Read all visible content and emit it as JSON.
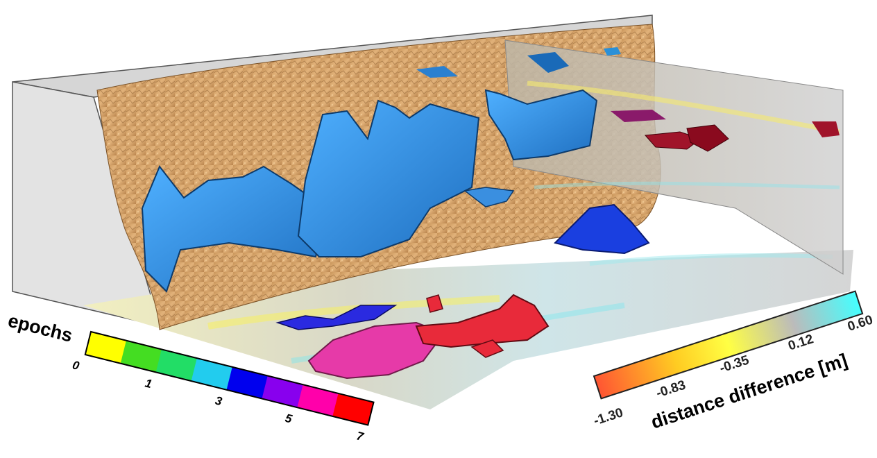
{
  "epochs_legend": {
    "title": "epochs",
    "ticks": [
      "0",
      "1",
      "3",
      "5",
      "7"
    ],
    "colors": [
      "#ffff00",
      "#44dd22",
      "#22dd66",
      "#22ccee",
      "#0000ee",
      "#8800ee",
      "#ff00aa",
      "#ff0000"
    ]
  },
  "distance_legend": {
    "title": "distance difference [m]",
    "ticks": [
      "-1.30",
      "-0.83",
      "-0.35",
      "0.12",
      "0.60"
    ],
    "colors": [
      "#ff5533",
      "#ffcc22",
      "#ffff44",
      "#bbbbbb",
      "#44ffff"
    ]
  }
}
